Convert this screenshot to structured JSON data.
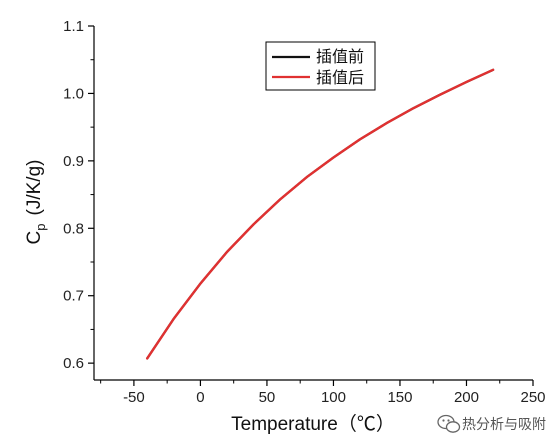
{
  "chart_data": {
    "type": "line",
    "xlabel": "Temperature（℃）",
    "ylabel_main": "C",
    "ylabel_sub": "p",
    "ylabel_unit": "(J/K/g)",
    "xlim": [
      -80,
      250
    ],
    "ylim": [
      0.575,
      1.1
    ],
    "xticks": [
      -50,
      0,
      50,
      100,
      150,
      200,
      250
    ],
    "yticks": [
      0.6,
      0.7,
      0.8,
      0.9,
      1.0,
      1.1
    ],
    "xtick_labels": [
      "-50",
      "0",
      "50",
      "100",
      "150",
      "200",
      "250"
    ],
    "ytick_labels": [
      "0.6",
      "0.7",
      "0.8",
      "0.9",
      "1.0",
      "1.1"
    ],
    "legend_placement": "top-center",
    "series": [
      {
        "name": "插值前",
        "color": "#111111",
        "x": [
          -40,
          -20,
          0,
          20,
          40,
          60,
          80,
          100,
          120,
          140,
          160,
          180,
          200,
          220
        ],
        "y": [
          0.607,
          0.666,
          0.718,
          0.765,
          0.806,
          0.843,
          0.876,
          0.905,
          0.932,
          0.956,
          0.978,
          0.998,
          1.017,
          1.035
        ]
      },
      {
        "name": "插值后",
        "color": "#e03131",
        "x": [
          -40,
          -20,
          0,
          20,
          40,
          60,
          80,
          100,
          120,
          140,
          160,
          180,
          200,
          220
        ],
        "y": [
          0.607,
          0.666,
          0.718,
          0.765,
          0.806,
          0.843,
          0.876,
          0.905,
          0.932,
          0.956,
          0.978,
          0.998,
          1.017,
          1.035
        ]
      }
    ]
  },
  "watermark": {
    "icon": "wechat-icon",
    "text": "热分析与吸附"
  }
}
